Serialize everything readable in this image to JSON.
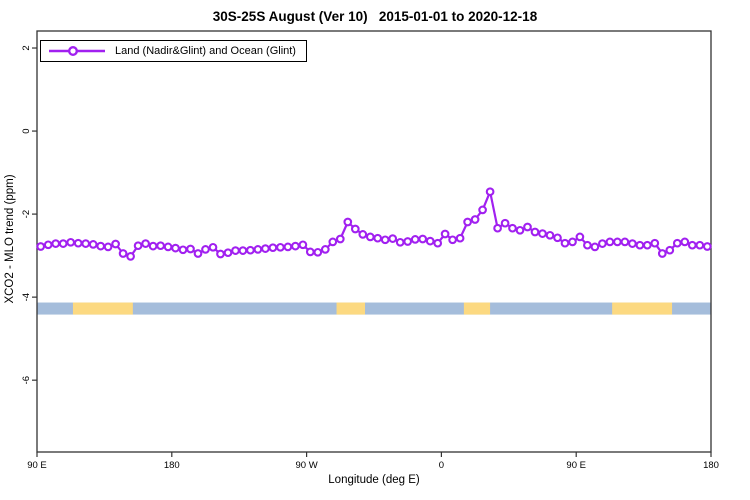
{
  "legend": {
    "label": "Land (Nadir&Glint) and Ocean (Glint)"
  },
  "chart_data": {
    "type": "line",
    "title": "30S-25S August (Ver 10)   2015-01-01 to 2020-12-18",
    "xlabel": "Longitude (deg E)",
    "ylabel": "XCO2 - MLO trend (ppm)",
    "xlim": [
      90,
      540
    ],
    "ylim": [
      -7.73,
      2.41
    ],
    "grid": false,
    "legend_position": "top-left",
    "x_ticks": [
      {
        "value": 90,
        "label": "90 E"
      },
      {
        "value": 180,
        "label": "180"
      },
      {
        "value": 270,
        "label": "90 W"
      },
      {
        "value": 360,
        "label": "0"
      },
      {
        "value": 450,
        "label": "90 E"
      },
      {
        "value": 540,
        "label": "180"
      }
    ],
    "y_ticks": [
      {
        "value": 2,
        "label": "2"
      },
      {
        "value": 0,
        "label": "0"
      },
      {
        "value": -2,
        "label": "-2"
      },
      {
        "value": -4,
        "label": "-4"
      },
      {
        "value": -6,
        "label": "-6"
      }
    ],
    "series": [
      {
        "name": "Land (Nadir&Glint) and Ocean (Glint)",
        "color": "#A120F0",
        "marker": "open-circle",
        "x": [
          92.5,
          97.5,
          102.5,
          107.5,
          112.5,
          117.5,
          122.5,
          127.5,
          132.5,
          137.5,
          142.5,
          147.5,
          152.5,
          157.5,
          162.5,
          167.5,
          172.5,
          177.5,
          182.5,
          187.5,
          192.5,
          197.5,
          202.5,
          207.5,
          212.5,
          217.5,
          222.5,
          227.5,
          232.5,
          237.5,
          242.5,
          247.5,
          252.5,
          257.5,
          262.5,
          267.5,
          272.5,
          277.5,
          282.5,
          287.5,
          292.5,
          297.5,
          302.5,
          307.5,
          312.5,
          317.5,
          322.5,
          327.5,
          332.5,
          337.5,
          342.5,
          347.5,
          352.5,
          357.5,
          362.5,
          367.5,
          372.5,
          377.5,
          382.5,
          387.5,
          392.5,
          397.5,
          402.5,
          407.5,
          412.5,
          417.5,
          422.5,
          427.5,
          432.5,
          437.5,
          442.5,
          447.5,
          452.5,
          457.5,
          462.5,
          467.5,
          472.5,
          477.5,
          482.5,
          487.5,
          492.5,
          497.5,
          502.5,
          507.5,
          512.5,
          517.5,
          522.5,
          527.5,
          532.5,
          537.5
        ],
        "values": [
          -2.78,
          -2.74,
          -2.71,
          -2.71,
          -2.68,
          -2.7,
          -2.71,
          -2.73,
          -2.77,
          -2.79,
          -2.72,
          -2.95,
          -3.02,
          -2.76,
          -2.71,
          -2.77,
          -2.76,
          -2.79,
          -2.82,
          -2.86,
          -2.84,
          -2.95,
          -2.85,
          -2.8,
          -2.96,
          -2.93,
          -2.88,
          -2.88,
          -2.87,
          -2.85,
          -2.83,
          -2.81,
          -2.8,
          -2.79,
          -2.77,
          -2.74,
          -2.91,
          -2.92,
          -2.85,
          -2.67,
          -2.6,
          -2.19,
          -2.36,
          -2.49,
          -2.55,
          -2.58,
          -2.62,
          -2.59,
          -2.68,
          -2.66,
          -2.61,
          -2.6,
          -2.65,
          -2.7,
          -2.48,
          -2.62,
          -2.58,
          -2.19,
          -2.13,
          -1.9,
          -1.46,
          -2.34,
          -2.22,
          -2.34,
          -2.39,
          -2.31,
          -2.43,
          -2.47,
          -2.51,
          -2.57,
          -2.7,
          -2.67,
          -2.55,
          -2.75,
          -2.79,
          -2.71,
          -2.67,
          -2.67,
          -2.67,
          -2.71,
          -2.75,
          -2.75,
          -2.7,
          -2.95,
          -2.87,
          -2.7,
          -2.67,
          -2.75,
          -2.75,
          -2.78
        ]
      }
    ],
    "surface_band": {
      "description": "land (orange) vs ocean (blue) strip along longitude",
      "value_top": -4.13,
      "value_bottom": -4.42,
      "ocean_color": "#A5BDDB",
      "land_color": "#FCD981",
      "land_segments_lon": [
        [
          114,
          154
        ],
        [
          290,
          309
        ],
        [
          375,
          392.5
        ],
        [
          474,
          514
        ]
      ]
    },
    "axis_color": "#333333"
  }
}
